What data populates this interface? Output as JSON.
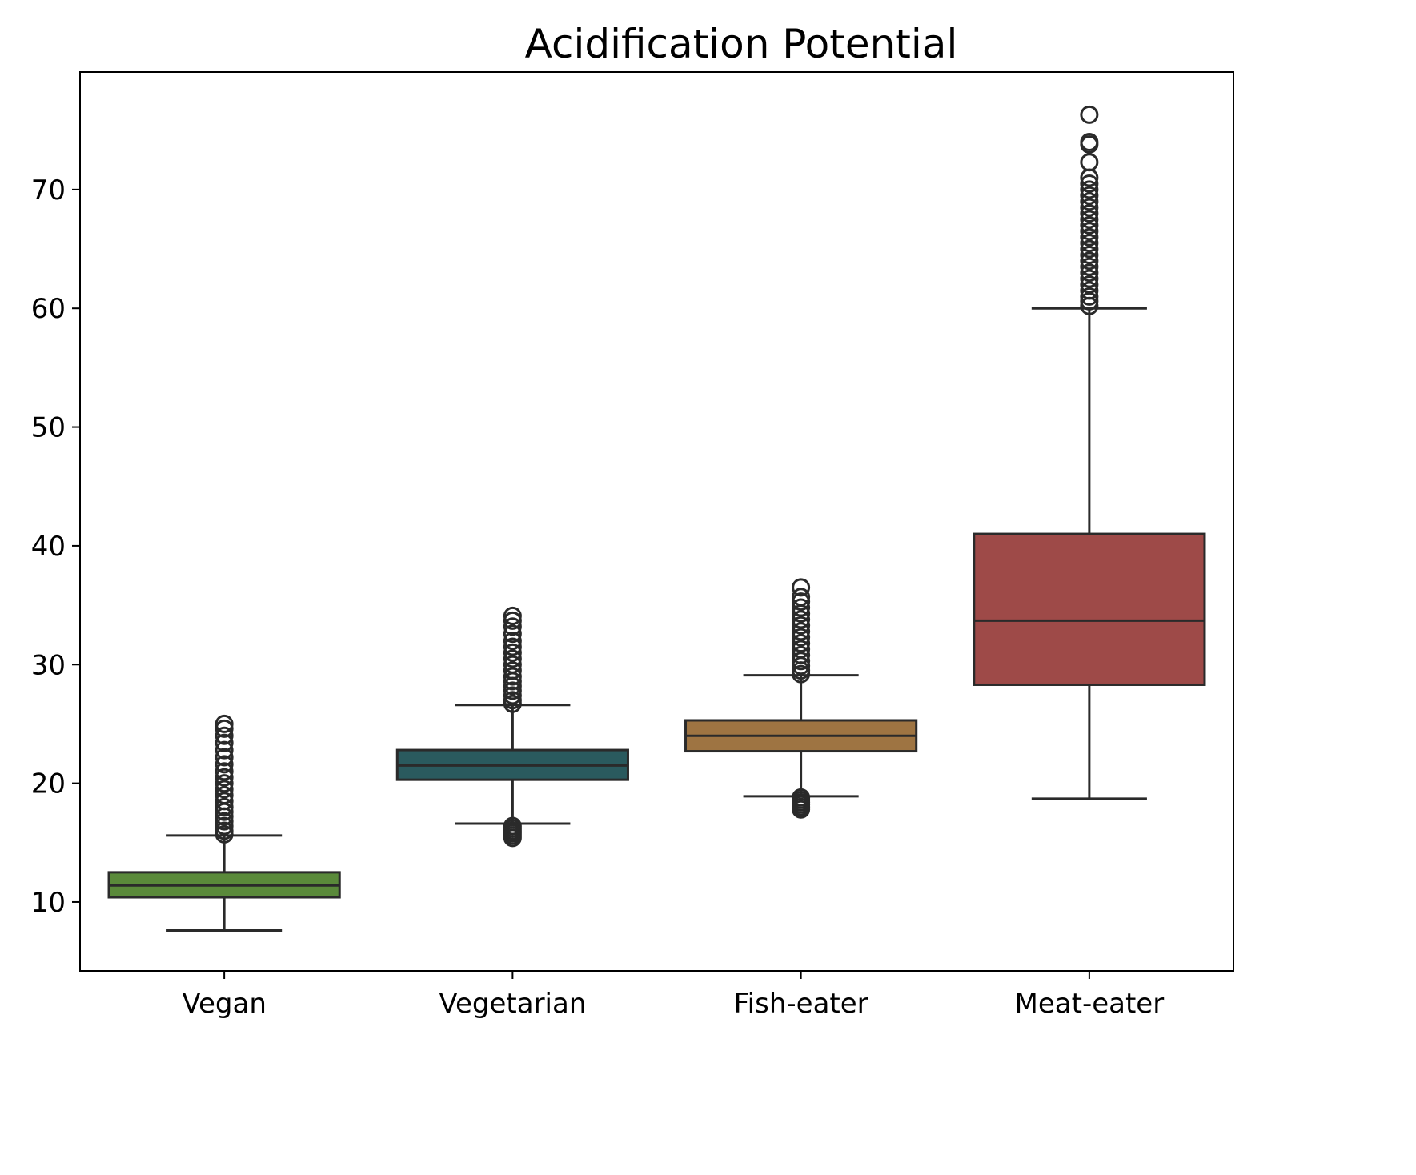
{
  "chart_data": {
    "type": "box",
    "title": "Acidification Potential",
    "xlabel": "",
    "ylabel": "",
    "categories": [
      "Vegan",
      "Vegetarian",
      "Fish-eater",
      "Meat-eater"
    ],
    "ylim": [
      4.2,
      79.9
    ],
    "yticks": [
      10,
      20,
      30,
      40,
      50,
      60,
      70
    ],
    "grid": false,
    "colors": [
      "#5a8a3a",
      "#2a5a5e",
      "#9e7442",
      "#9e4a48"
    ],
    "outline_color": "#2a2a2a",
    "boxes": [
      {
        "category": "Vegan",
        "q1": 10.4,
        "median": 11.4,
        "q3": 12.5,
        "whisker_low": 7.6,
        "whisker_high": 15.6,
        "outliers_high": [
          15.7,
          16.0,
          16.4,
          16.8,
          17.2,
          17.6,
          18.0,
          18.5,
          19.0,
          19.5,
          20.0,
          20.5,
          21.0,
          21.6,
          22.2,
          22.8,
          23.4,
          24.0,
          24.6,
          25.0
        ],
        "outliers_low": []
      },
      {
        "category": "Vegetarian",
        "q1": 20.3,
        "median": 21.5,
        "q3": 22.8,
        "whisker_low": 16.6,
        "whisker_high": 26.6,
        "outliers_high": [
          26.7,
          27.0,
          27.4,
          27.8,
          28.2,
          28.6,
          29.0,
          29.5,
          30.0,
          30.5,
          31.0,
          31.5,
          32.0,
          32.6,
          33.2,
          33.7,
          34.1
        ],
        "outliers_low": [
          16.4,
          16.2,
          16.0,
          15.8,
          15.6,
          15.4
        ]
      },
      {
        "category": "Fish-eater",
        "q1": 22.7,
        "median": 24.0,
        "q3": 25.3,
        "whisker_low": 18.9,
        "whisker_high": 29.1,
        "outliers_high": [
          29.2,
          29.5,
          29.9,
          30.3,
          30.8,
          31.3,
          31.8,
          32.3,
          32.8,
          33.3,
          33.8,
          34.3,
          34.8,
          35.3,
          35.7,
          36.5
        ],
        "outliers_low": [
          18.8,
          18.6,
          18.4,
          18.2,
          18.0,
          17.8
        ]
      },
      {
        "category": "Meat-eater",
        "q1": 28.3,
        "median": 33.7,
        "q3": 41.0,
        "whisker_low": 18.7,
        "whisker_high": 60.0,
        "outliers_high": [
          60.2,
          60.6,
          61.0,
          61.5,
          62.0,
          62.5,
          63.0,
          63.5,
          64.0,
          64.5,
          65.0,
          65.5,
          66.0,
          66.5,
          67.0,
          67.5,
          68.0,
          68.5,
          69.0,
          69.5,
          70.0,
          70.5,
          71.0,
          72.3,
          73.8,
          74.0,
          76.3
        ],
        "outliers_low": []
      }
    ]
  }
}
